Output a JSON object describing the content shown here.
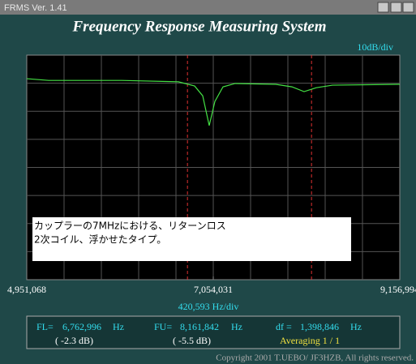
{
  "window_title": "FRMS  Ver. 1.41",
  "chart_data": {
    "type": "line",
    "title": "Frequency Response Measuring System",
    "y_scale_label": "10dB/div",
    "x_scale_label": "420,593 Hz/div",
    "xlim": [
      4951068,
      9156994
    ],
    "xticks": [
      {
        "value": 4951068,
        "label": "4,951,068"
      },
      {
        "value": 7054031,
        "label": "7,054,031"
      },
      {
        "value": 9156994,
        "label": "9,156,994"
      }
    ],
    "ylim": [
      -80,
      0
    ],
    "grid": true,
    "series": [
      {
        "color": "#44e044",
        "x": [
          4951068,
          5197900,
          6020800,
          6660800,
          6843700,
          6935100,
          7008300,
          7072300,
          7163700,
          7300900,
          7758000,
          7940900,
          8078000,
          8215200,
          8398000,
          9156994
        ],
        "values": [
          -8.4,
          -9.0,
          -9.0,
          -9.5,
          -11,
          -14.5,
          -25.1,
          -16.5,
          -11.3,
          -10.1,
          -10.4,
          -11.3,
          -13.0,
          -11.6,
          -10.7,
          -10.4
        ]
      }
    ],
    "annotation": [
      "カップラーの7MHzにおける、リターンロス",
      "2次コイル、浮かせたタイプ。"
    ]
  },
  "readouts": {
    "fl": {
      "label": "FL=",
      "value": {
        "value": 6762996,
        "label": "6,762,996"
      },
      "unit": "Hz",
      "level": "( -2.3 dB)"
    },
    "fu": {
      "label": "FU=",
      "value": {
        "value": 8161842,
        "label": "8,161,842"
      },
      "unit": "Hz",
      "level": "( -5.5 dB)"
    },
    "df": {
      "label": "df =",
      "value": {
        "value": 1398846,
        "label": "1,398,846"
      },
      "unit": "Hz"
    },
    "averaging": "Averaging  1 / 1"
  },
  "copyright": "Copyright 2001 T.UEBO/ JF3HZB, All rights reserved."
}
